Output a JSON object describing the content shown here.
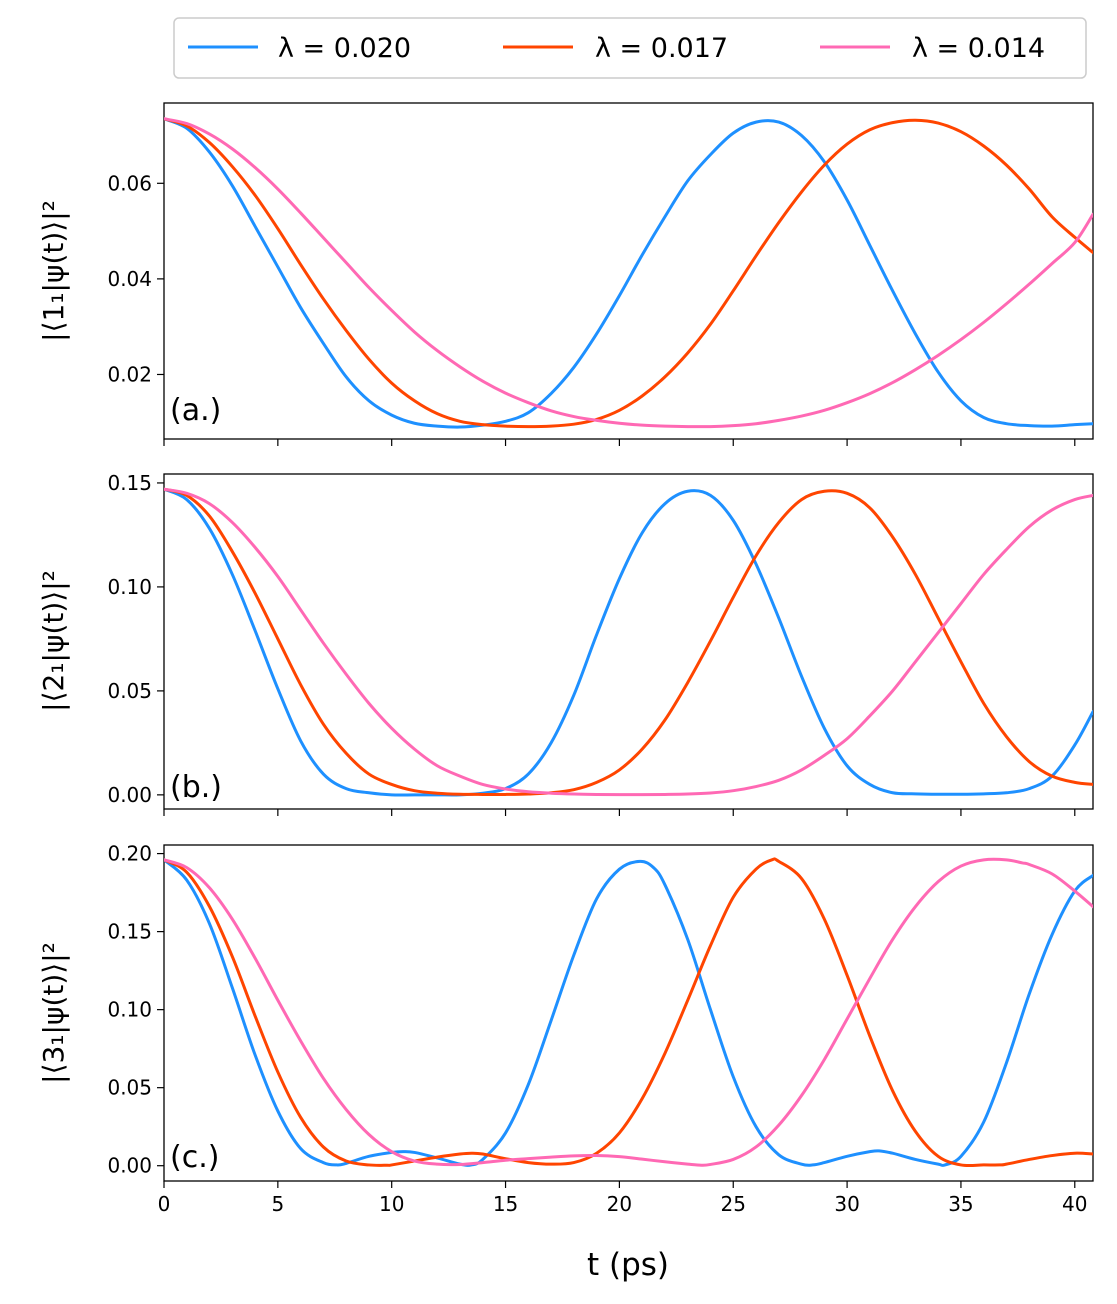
{
  "chart_data": [
    {
      "type": "line",
      "panel_label": "(a.)",
      "ylabel": "|⟨1₁|ψ(t)⟩|²",
      "xlabel": "",
      "xlim": [
        0,
        40.8
      ],
      "ylim": [
        0.0065,
        0.0768
      ],
      "xticks": [
        0,
        5,
        10,
        15,
        20,
        25,
        30,
        35,
        40
      ],
      "yticks": [
        0.02,
        0.04,
        0.06
      ],
      "ytick_labels": [
        "0.02",
        "0.04",
        "0.06"
      ],
      "xtick_labels_visible": false,
      "series": [
        {
          "name": "λ = 0.020",
          "color": "#1e90ff",
          "x": [
            0,
            1,
            2,
            3,
            4,
            5,
            6,
            7,
            8,
            9,
            10,
            11,
            12,
            13,
            14,
            15,
            16,
            17,
            18,
            19,
            20,
            21,
            22,
            23,
            24,
            25,
            26,
            27,
            28,
            29,
            30,
            31,
            32,
            33,
            34,
            35,
            36,
            37,
            38,
            39,
            40,
            40.8
          ],
          "values": [
            0.0735,
            0.0715,
            0.0665,
            0.0595,
            0.051,
            0.0425,
            0.034,
            0.0265,
            0.0195,
            0.0145,
            0.0115,
            0.0098,
            0.0092,
            0.009,
            0.0094,
            0.0102,
            0.012,
            0.016,
            0.0215,
            0.0285,
            0.0365,
            0.045,
            0.053,
            0.0605,
            0.066,
            0.0705,
            0.0728,
            0.0728,
            0.07,
            0.0645,
            0.0565,
            0.047,
            0.0375,
            0.0285,
            0.0205,
            0.0145,
            0.011,
            0.0097,
            0.0093,
            0.0092,
            0.0095,
            0.0097
          ]
        },
        {
          "name": "λ = 0.017",
          "color": "#ff4500",
          "x": [
            0,
            1,
            2,
            3,
            4,
            5,
            6,
            7,
            8,
            9,
            10,
            11,
            12,
            13,
            14,
            15,
            16,
            17,
            18,
            19,
            20,
            21,
            22,
            23,
            24,
            25,
            26,
            27,
            28,
            29,
            30,
            31,
            32,
            33,
            34,
            35,
            36,
            37,
            38,
            39,
            40,
            40.8
          ],
          "values": [
            0.0735,
            0.072,
            0.0685,
            0.0635,
            0.0575,
            0.0505,
            0.043,
            0.0358,
            0.0292,
            0.0232,
            0.0182,
            0.0145,
            0.0118,
            0.0102,
            0.0095,
            0.0092,
            0.0091,
            0.0092,
            0.0096,
            0.0106,
            0.0125,
            0.0155,
            0.0195,
            0.0245,
            0.0305,
            0.0375,
            0.0448,
            0.0518,
            0.0582,
            0.0638,
            0.0682,
            0.0712,
            0.0727,
            0.0732,
            0.0726,
            0.0708,
            0.0678,
            0.0638,
            0.0588,
            0.053,
            0.0487,
            0.0455
          ]
        },
        {
          "name": "λ = 0.014",
          "color": "#ff69b4",
          "x": [
            0,
            1,
            2,
            3,
            4,
            5,
            6,
            7,
            8,
            9,
            10,
            11,
            12,
            13,
            14,
            15,
            16,
            17,
            18,
            19,
            20,
            21,
            22,
            23,
            24,
            25,
            26,
            27,
            28,
            29,
            30,
            31,
            32,
            33,
            34,
            35,
            36,
            37,
            38,
            39,
            40,
            40.8
          ],
          "values": [
            0.0735,
            0.0725,
            0.0703,
            0.0672,
            0.0633,
            0.0588,
            0.0538,
            0.0486,
            0.0434,
            0.0382,
            0.0334,
            0.0289,
            0.025,
            0.0216,
            0.0186,
            0.0161,
            0.0141,
            0.0124,
            0.0112,
            0.0104,
            0.0098,
            0.0094,
            0.0092,
            0.0091,
            0.0091,
            0.0093,
            0.0097,
            0.0104,
            0.0113,
            0.0125,
            0.0141,
            0.016,
            0.0183,
            0.021,
            0.024,
            0.0273,
            0.0309,
            0.0348,
            0.0389,
            0.0432,
            0.0476,
            0.0535
          ]
        }
      ]
    },
    {
      "type": "line",
      "panel_label": "(b.)",
      "ylabel": "|⟨2₁|ψ(t)⟩|²",
      "xlabel": "",
      "xlim": [
        0,
        40.8
      ],
      "ylim": [
        -0.0068,
        0.1543
      ],
      "xticks": [
        0,
        5,
        10,
        15,
        20,
        25,
        30,
        35,
        40
      ],
      "yticks": [
        0.0,
        0.05,
        0.1,
        0.15
      ],
      "ytick_labels": [
        "0.00",
        "0.05",
        "0.10",
        "0.15"
      ],
      "xtick_labels_visible": false,
      "series": [
        {
          "name": "λ = 0.020",
          "color": "#1e90ff",
          "x": [
            0,
            1,
            2,
            3,
            4,
            5,
            6,
            7,
            8,
            9,
            10,
            11,
            12,
            13,
            14,
            15,
            16,
            17,
            18,
            19,
            20,
            21,
            22,
            23,
            24,
            25,
            26,
            27,
            28,
            29,
            30,
            31,
            32,
            33,
            34,
            35,
            36,
            37,
            38,
            39,
            40,
            40.8
          ],
          "values": [
            0.147,
            0.142,
            0.128,
            0.106,
            0.079,
            0.051,
            0.026,
            0.01,
            0.003,
            0.001,
            0.0,
            0.0,
            0.0,
            0.0,
            0.0008,
            0.003,
            0.01,
            0.025,
            0.048,
            0.077,
            0.104,
            0.126,
            0.14,
            0.146,
            0.144,
            0.132,
            0.111,
            0.085,
            0.057,
            0.032,
            0.014,
            0.005,
            0.001,
            0.0005,
            0.0003,
            0.0003,
            0.0005,
            0.001,
            0.003,
            0.009,
            0.024,
            0.04
          ]
        },
        {
          "name": "λ = 0.017",
          "color": "#ff4500",
          "x": [
            0,
            1,
            2,
            3,
            4,
            5,
            6,
            7,
            8,
            9,
            10,
            11,
            12,
            13,
            14,
            15,
            16,
            17,
            18,
            19,
            20,
            21,
            22,
            23,
            24,
            25,
            26,
            27,
            28,
            29,
            30,
            31,
            32,
            33,
            34,
            35,
            36,
            37,
            38,
            39,
            40,
            40.8
          ],
          "values": [
            0.147,
            0.144,
            0.134,
            0.117,
            0.097,
            0.075,
            0.053,
            0.034,
            0.02,
            0.01,
            0.005,
            0.002,
            0.0008,
            0.0003,
            0.0002,
            0.0002,
            0.0004,
            0.001,
            0.0025,
            0.006,
            0.012,
            0.022,
            0.036,
            0.054,
            0.074,
            0.095,
            0.115,
            0.131,
            0.142,
            0.146,
            0.145,
            0.138,
            0.124,
            0.106,
            0.085,
            0.064,
            0.044,
            0.028,
            0.016,
            0.009,
            0.006,
            0.005
          ]
        },
        {
          "name": "λ = 0.014",
          "color": "#ff69b4",
          "x": [
            0,
            1,
            2,
            3,
            4,
            5,
            6,
            7,
            8,
            9,
            10,
            11,
            12,
            13,
            14,
            15,
            16,
            17,
            18,
            19,
            20,
            21,
            22,
            23,
            24,
            25,
            26,
            27,
            28,
            29,
            30,
            31,
            32,
            33,
            34,
            35,
            36,
            37,
            38,
            39,
            40,
            40.8
          ],
          "values": [
            0.147,
            0.145,
            0.14,
            0.131,
            0.119,
            0.105,
            0.089,
            0.073,
            0.058,
            0.044,
            0.032,
            0.022,
            0.014,
            0.009,
            0.005,
            0.0028,
            0.0015,
            0.0008,
            0.0004,
            0.0002,
            0.0001,
            0.0001,
            0.0002,
            0.0004,
            0.0009,
            0.002,
            0.004,
            0.007,
            0.012,
            0.019,
            0.027,
            0.038,
            0.05,
            0.064,
            0.078,
            0.092,
            0.106,
            0.118,
            0.129,
            0.137,
            0.142,
            0.144
          ]
        }
      ]
    },
    {
      "type": "line",
      "panel_label": "(c.)",
      "ylabel": "|⟨3₁|ψ(t)⟩|²",
      "xlabel": "t  (ps)",
      "xlim": [
        0,
        40.8
      ],
      "ylim": [
        -0.0098,
        0.2055
      ],
      "xticks": [
        0,
        5,
        10,
        15,
        20,
        25,
        30,
        35,
        40
      ],
      "xtick_labels": [
        "0",
        "5",
        "10",
        "15",
        "20",
        "25",
        "30",
        "35",
        "40"
      ],
      "yticks": [
        0.0,
        0.05,
        0.1,
        0.15,
        0.2
      ],
      "ytick_labels": [
        "0.00",
        "0.05",
        "0.10",
        "0.15",
        "0.20"
      ],
      "xtick_labels_visible": true,
      "series": [
        {
          "name": "λ = 0.020",
          "color": "#1e90ff",
          "x": [
            0,
            1,
            2,
            3,
            4,
            5,
            6,
            7,
            7.6,
            8,
            9,
            10,
            10.5,
            11,
            12,
            13,
            13.5,
            14,
            15,
            16,
            17,
            18,
            19,
            20,
            20.9,
            21.5,
            22,
            23,
            24,
            25,
            26,
            27,
            28,
            28.5,
            29,
            30,
            31,
            31.4,
            32,
            33,
            34,
            34.3,
            35,
            36,
            37,
            38,
            39,
            40,
            40.8
          ],
          "values": [
            0.196,
            0.183,
            0.155,
            0.114,
            0.071,
            0.035,
            0.011,
            0.002,
            0.0005,
            0.0015,
            0.006,
            0.0085,
            0.009,
            0.0085,
            0.005,
            0.001,
            0.0005,
            0.004,
            0.021,
            0.052,
            0.093,
            0.135,
            0.171,
            0.19,
            0.195,
            0.191,
            0.18,
            0.145,
            0.1,
            0.057,
            0.025,
            0.007,
            0.001,
            0.0005,
            0.002,
            0.006,
            0.009,
            0.0095,
            0.008,
            0.004,
            0.001,
            0.0005,
            0.006,
            0.028,
            0.066,
            0.11,
            0.148,
            0.176,
            0.186
          ]
        },
        {
          "name": "λ = 0.017",
          "color": "#ff4500",
          "x": [
            0,
            1,
            2,
            3,
            4,
            5,
            6,
            7,
            8,
            9,
            9.8,
            10,
            11,
            12,
            13,
            13.5,
            14,
            15,
            16,
            17,
            18,
            19,
            20,
            21,
            22,
            23,
            24,
            25,
            26,
            26.7,
            27,
            28,
            29,
            30,
            31,
            32,
            33,
            34,
            35,
            36,
            36.7,
            37,
            38,
            39,
            40,
            40.8
          ],
          "values": [
            0.196,
            0.188,
            0.166,
            0.134,
            0.096,
            0.06,
            0.031,
            0.012,
            0.003,
            0.0005,
            0.0003,
            0.0005,
            0.003,
            0.0055,
            0.0075,
            0.008,
            0.0075,
            0.0045,
            0.002,
            0.001,
            0.002,
            0.008,
            0.021,
            0.043,
            0.072,
            0.106,
            0.141,
            0.172,
            0.19,
            0.196,
            0.195,
            0.184,
            0.158,
            0.122,
            0.083,
            0.048,
            0.022,
            0.006,
            0.0005,
            0.0005,
            0.0005,
            0.001,
            0.004,
            0.0065,
            0.008,
            0.0075
          ]
        },
        {
          "name": "λ = 0.014",
          "color": "#ff69b4",
          "x": [
            0,
            1,
            2,
            3,
            4,
            5,
            6,
            7,
            8,
            9,
            10,
            11,
            12,
            13,
            14,
            15,
            16,
            17,
            18,
            19,
            20,
            21,
            22,
            23,
            23.6,
            24,
            25,
            26,
            27,
            28,
            29,
            30,
            31,
            32,
            33,
            34,
            35,
            36,
            37,
            37.7,
            38,
            39,
            40,
            40.8
          ],
          "values": [
            0.196,
            0.191,
            0.178,
            0.158,
            0.133,
            0.106,
            0.08,
            0.056,
            0.036,
            0.02,
            0.009,
            0.003,
            0.001,
            0.0008,
            0.002,
            0.0035,
            0.0045,
            0.0055,
            0.0063,
            0.0065,
            0.0058,
            0.0042,
            0.0025,
            0.001,
            0.0003,
            0.0008,
            0.004,
            0.012,
            0.026,
            0.045,
            0.068,
            0.094,
            0.12,
            0.145,
            0.166,
            0.182,
            0.192,
            0.196,
            0.196,
            0.194,
            0.193,
            0.187,
            0.176,
            0.166
          ]
        }
      ]
    }
  ],
  "legend": {
    "entries": [
      {
        "label": "λ = 0.020",
        "color": "#1e90ff"
      },
      {
        "label": "λ = 0.017",
        "color": "#ff4500"
      },
      {
        "label": "λ = 0.014",
        "color": "#ff69b4"
      }
    ],
    "placement": "top-center"
  }
}
